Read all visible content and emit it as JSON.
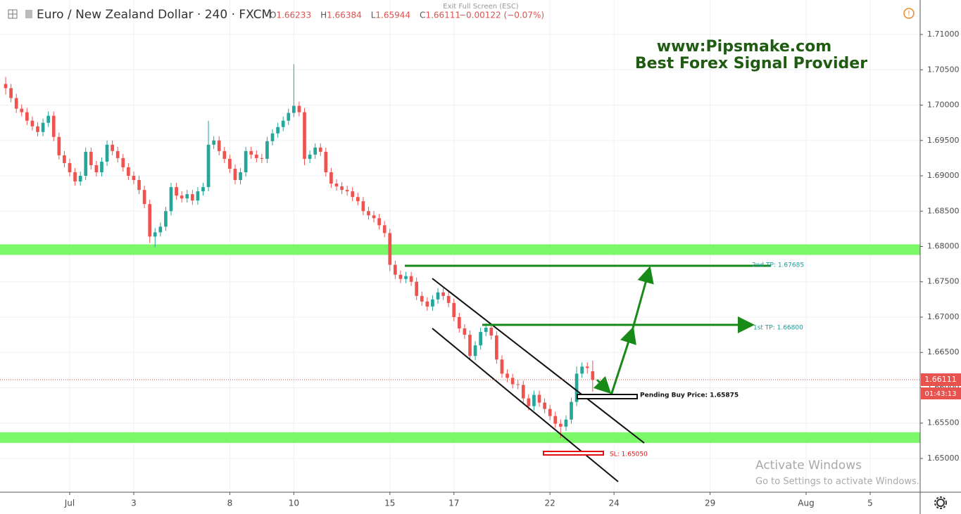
{
  "chart_data": {
    "type": "candlestick",
    "title": "Euro / New Zealand Dollar · 240 · FXCM",
    "ohlc_legend": [
      {
        "label": "O",
        "value": "1.66233"
      },
      {
        "label": "H",
        "value": "1.66384"
      },
      {
        "label": "L",
        "value": "1.65944"
      },
      {
        "label": "C",
        "value": "1.66111"
      }
    ],
    "change": "−0.00122 (−0.07%)",
    "fullscreen_hint": "Exit Full Screen (ESC)",
    "watermark": [
      "www:Pipsmake.com",
      "Best Forex Signal Provider"
    ],
    "annotations": {
      "tp2": "2nd TP: 1.67685",
      "tp1": "1st TP: 1.66800",
      "pending": "Pending Buy Price: 1.65875",
      "sl": "SL: 1.65050"
    },
    "price_label": "1.66111",
    "countdown": "01:43:13",
    "os_notice": [
      "Activate Windows",
      "Go to Settings to activate Windows."
    ],
    "up_color": "#26a69a",
    "down_color": "#ef5350",
    "zone_color": "#7cf76a",
    "grid": true,
    "x": [
      -12,
      -11,
      -10,
      -9,
      -8,
      -7,
      -6,
      -5,
      -4,
      -3,
      -2,
      -1,
      0,
      1,
      2,
      3,
      4,
      5,
      6,
      7,
      8,
      9,
      10,
      11,
      12,
      13,
      14,
      15,
      16,
      17,
      18,
      19,
      20,
      21,
      22,
      23,
      24,
      25,
      26,
      27,
      28,
      29,
      30,
      31,
      32,
      33,
      34,
      35,
      36,
      37,
      38,
      39,
      40,
      41,
      42,
      43,
      44,
      45,
      46,
      47,
      48,
      49,
      50,
      51,
      52,
      53,
      54,
      55,
      56,
      57,
      58,
      59,
      60,
      61,
      62,
      63,
      64,
      65,
      66,
      67,
      68,
      69,
      70,
      71,
      72,
      73,
      74,
      75,
      76,
      77,
      78,
      79,
      80,
      81,
      82,
      83,
      84,
      85,
      86,
      87,
      88,
      89,
      90,
      91,
      92,
      93,
      94,
      95,
      96,
      97,
      98
    ],
    "open": [
      1.703,
      1.7024,
      1.701,
      1.6995,
      1.699,
      1.6978,
      1.697,
      1.6962,
      1.6975,
      1.6985,
      1.6955,
      1.6929,
      1.6918,
      1.6905,
      1.6892,
      1.69,
      1.6934,
      1.6915,
      1.6905,
      1.692,
      1.6944,
      1.6935,
      1.6925,
      1.6912,
      1.69,
      1.6894,
      1.688,
      1.686,
      1.6814,
      1.682,
      1.6828,
      1.685,
      1.6884,
      1.6872,
      1.6868,
      1.6874,
      1.6865,
      1.6878,
      1.6884,
      1.6944,
      1.695,
      1.6935,
      1.6924,
      1.691,
      1.6894,
      1.6905,
      1.6935,
      1.693,
      1.6925,
      1.6924,
      1.6949,
      1.696,
      1.6969,
      1.6978,
      1.6989,
      1.6999,
      1.699,
      1.6924,
      1.693,
      1.694,
      1.6934,
      1.6905,
      1.6889,
      1.6885,
      1.688,
      1.6878,
      1.687,
      1.6864,
      1.685,
      1.6844,
      1.684,
      1.683,
      1.6819,
      1.6774,
      1.676,
      1.6754,
      1.6758,
      1.675,
      1.673,
      1.6722,
      1.6715,
      1.6725,
      1.6735,
      1.673,
      1.672,
      1.67,
      1.6684,
      1.6675,
      1.6645,
      1.666,
      1.6679,
      1.6685,
      1.6674,
      1.664,
      1.662,
      1.6614,
      1.6605,
      1.6604,
      1.6585,
      1.6574,
      1.659,
      1.6579,
      1.657,
      1.656,
      1.6549,
      1.6545,
      1.6555,
      1.658,
      1.662,
      1.663,
      1.66233
    ],
    "high": [
      1.704,
      1.703,
      1.7016,
      1.7001,
      1.6996,
      1.6984,
      1.6976,
      1.6981,
      1.6991,
      1.6991,
      1.6961,
      1.6935,
      1.6924,
      1.6911,
      1.6906,
      1.694,
      1.694,
      1.6921,
      1.6926,
      1.695,
      1.695,
      1.6941,
      1.6931,
      1.6918,
      1.6906,
      1.69,
      1.6886,
      1.6866,
      1.6826,
      1.6834,
      1.6856,
      1.689,
      1.689,
      1.6878,
      1.688,
      1.688,
      1.6884,
      1.689,
      1.6978,
      1.6956,
      1.6956,
      1.6941,
      1.693,
      1.6916,
      1.6911,
      1.6941,
      1.6941,
      1.6936,
      1.6931,
      1.6955,
      1.6966,
      1.6975,
      1.6984,
      1.6995,
      1.7058,
      1.7005,
      1.6996,
      1.6936,
      1.6946,
      1.6946,
      1.694,
      1.6911,
      1.6895,
      1.6891,
      1.6886,
      1.6884,
      1.6876,
      1.687,
      1.6856,
      1.685,
      1.6846,
      1.6836,
      1.6825,
      1.678,
      1.6766,
      1.6764,
      1.6764,
      1.6756,
      1.6736,
      1.6728,
      1.6731,
      1.6741,
      1.6741,
      1.6736,
      1.6726,
      1.6706,
      1.669,
      1.6681,
      1.6666,
      1.6685,
      1.6691,
      1.6691,
      1.668,
      1.6646,
      1.6626,
      1.662,
      1.6611,
      1.661,
      1.6591,
      1.6596,
      1.6596,
      1.6585,
      1.6576,
      1.6566,
      1.6555,
      1.6561,
      1.6586,
      1.663,
      1.6636,
      1.6636,
      1.66384
    ],
    "low": [
      1.7015,
      1.7004,
      1.6989,
      1.6984,
      1.6972,
      1.6964,
      1.6956,
      1.6956,
      1.6969,
      1.6949,
      1.6923,
      1.6912,
      1.6899,
      1.6886,
      1.6886,
      1.6894,
      1.6909,
      1.6899,
      1.6899,
      1.6914,
      1.6929,
      1.6919,
      1.6906,
      1.6894,
      1.6888,
      1.6874,
      1.6854,
      1.6805,
      1.6799,
      1.6814,
      1.6822,
      1.6844,
      1.6866,
      1.6862,
      1.6862,
      1.6859,
      1.6859,
      1.6872,
      1.6878,
      1.6938,
      1.6929,
      1.6918,
      1.6904,
      1.6888,
      1.6888,
      1.6899,
      1.6924,
      1.6919,
      1.6918,
      1.6918,
      1.6943,
      1.6954,
      1.6963,
      1.6972,
      1.6983,
      1.6984,
      1.6915,
      1.6918,
      1.6924,
      1.6928,
      1.6899,
      1.6883,
      1.6879,
      1.6874,
      1.6872,
      1.6864,
      1.6858,
      1.6844,
      1.6838,
      1.6834,
      1.6824,
      1.6813,
      1.6765,
      1.6754,
      1.6748,
      1.6748,
      1.6744,
      1.6724,
      1.6716,
      1.6709,
      1.6709,
      1.6719,
      1.6724,
      1.6714,
      1.6694,
      1.6678,
      1.6669,
      1.6639,
      1.6639,
      1.6654,
      1.6673,
      1.6668,
      1.6634,
      1.6614,
      1.6608,
      1.6599,
      1.6598,
      1.6579,
      1.6568,
      1.6568,
      1.6573,
      1.6564,
      1.6554,
      1.6543,
      1.6529,
      1.6539,
      1.6549,
      1.6574,
      1.6614,
      1.662,
      1.65944
    ],
    "close": [
      1.7024,
      1.701,
      1.6995,
      1.699,
      1.6978,
      1.697,
      1.6962,
      1.6975,
      1.6985,
      1.6955,
      1.6929,
      1.6918,
      1.6905,
      1.6892,
      1.69,
      1.6934,
      1.6915,
      1.6905,
      1.692,
      1.6944,
      1.6935,
      1.6925,
      1.6912,
      1.69,
      1.6894,
      1.688,
      1.686,
      1.6814,
      1.682,
      1.6828,
      1.685,
      1.6884,
      1.6872,
      1.6868,
      1.6874,
      1.6865,
      1.6878,
      1.6884,
      1.6944,
      1.695,
      1.6935,
      1.6924,
      1.691,
      1.6894,
      1.6905,
      1.6935,
      1.693,
      1.6925,
      1.6924,
      1.6949,
      1.696,
      1.6969,
      1.6978,
      1.6989,
      1.6999,
      1.699,
      1.6924,
      1.693,
      1.694,
      1.6934,
      1.6905,
      1.6889,
      1.6885,
      1.688,
      1.6878,
      1.687,
      1.6864,
      1.685,
      1.6844,
      1.684,
      1.683,
      1.6819,
      1.6774,
      1.676,
      1.6754,
      1.6758,
      1.675,
      1.673,
      1.6722,
      1.6715,
      1.6725,
      1.6735,
      1.673,
      1.672,
      1.67,
      1.6684,
      1.6675,
      1.6645,
      1.666,
      1.6679,
      1.6685,
      1.6674,
      1.664,
      1.662,
      1.6614,
      1.6605,
      1.6604,
      1.6585,
      1.6574,
      1.659,
      1.6579,
      1.657,
      1.656,
      1.6549,
      1.6545,
      1.6555,
      1.658,
      1.662,
      1.663,
      1.6628,
      1.66111
    ],
    "zones": [
      [
        1.6788,
        1.6803
      ],
      [
        1.6522,
        1.6537
      ]
    ],
    "xlim": [
      -13.06,
      159.37
    ],
    "xticks": [
      {
        "value": 0,
        "label": "Jul"
      },
      {
        "value": 12,
        "label": "3"
      },
      {
        "value": 30,
        "label": "8"
      },
      {
        "value": 42,
        "label": "10"
      },
      {
        "value": 60,
        "label": "15"
      },
      {
        "value": 72,
        "label": "17"
      },
      {
        "value": 90,
        "label": "22"
      },
      {
        "value": 102,
        "label": "24"
      },
      {
        "value": 120,
        "label": "29"
      },
      {
        "value": 138,
        "label": "Aug"
      },
      {
        "value": 150,
        "label": "5"
      }
    ],
    "ylim": [
      1.64522,
      1.71488
    ],
    "yticks": [
      {
        "value": 1.71,
        "label": "1.71000"
      },
      {
        "value": 1.705,
        "label": "1.70500"
      },
      {
        "value": 1.7,
        "label": "1.70000"
      },
      {
        "value": 1.695,
        "label": "1.69500"
      },
      {
        "value": 1.69,
        "label": "1.69000"
      },
      {
        "value": 1.685,
        "label": "1.68500"
      },
      {
        "value": 1.68,
        "label": "1.68000"
      },
      {
        "value": 1.675,
        "label": "1.67500"
      },
      {
        "value": 1.67,
        "label": "1.67000"
      },
      {
        "value": 1.665,
        "label": "1.66500"
      },
      {
        "value": 1.66,
        "label": "1.66000"
      },
      {
        "value": 1.655,
        "label": "1.65500"
      },
      {
        "value": 1.65,
        "label": "1.65000"
      }
    ]
  }
}
